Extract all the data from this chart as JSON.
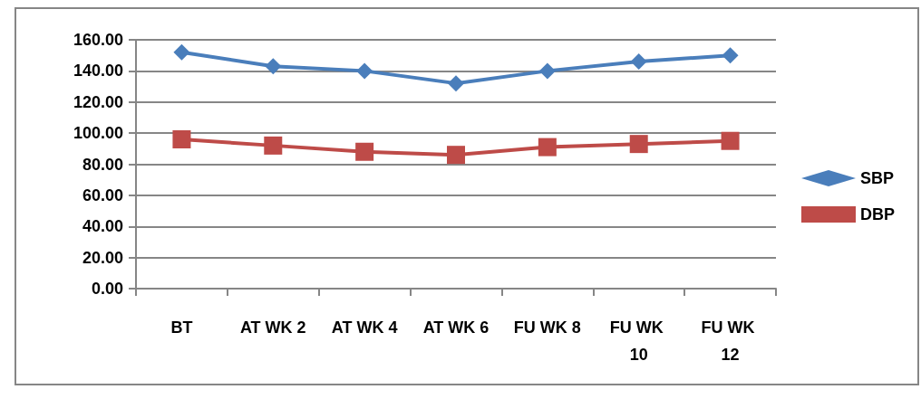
{
  "chart_data": {
    "type": "line",
    "categories": [
      "BT",
      "AT WK 2",
      "AT WK 4",
      "AT WK 6",
      "FU WK 8",
      "FU WK 10",
      "FU WK 12"
    ],
    "series": [
      {
        "name": "SBP",
        "color": "#4a7ebb",
        "marker": "diamond",
        "values": [
          152,
          143,
          140,
          132,
          140,
          146,
          150
        ]
      },
      {
        "name": "DBP",
        "color": "#be4b48",
        "marker": "square",
        "values": [
          96,
          92,
          88,
          86,
          91,
          93,
          95
        ]
      }
    ],
    "ylim": [
      0,
      160
    ],
    "yticks": [
      {
        "value": 0,
        "label": "0.00"
      },
      {
        "value": 20,
        "label": "20.00"
      },
      {
        "value": 40,
        "label": "40.00"
      },
      {
        "value": 60,
        "label": "60.00"
      },
      {
        "value": 80,
        "label": "80.00"
      },
      {
        "value": 100,
        "label": "100.00"
      },
      {
        "value": 120,
        "label": "120.00"
      },
      {
        "value": 140,
        "label": "140.00"
      },
      {
        "value": 160,
        "label": "160.00"
      }
    ],
    "grid": "y",
    "legend": "right",
    "line_style": "solid"
  }
}
